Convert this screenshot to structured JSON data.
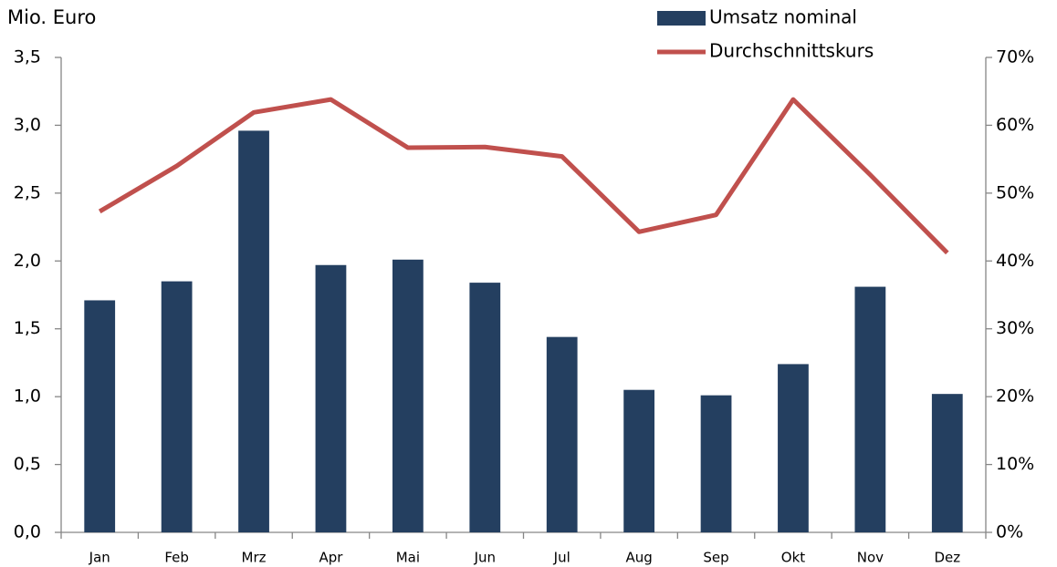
{
  "chart_data": {
    "type": "bar_line",
    "y_label": "Mio. Euro",
    "categories": [
      "Jan",
      "Feb",
      "Mrz",
      "Apr",
      "Mai",
      "Jun",
      "Jul",
      "Aug",
      "Sep",
      "Okt",
      "Nov",
      "Dez"
    ],
    "series": [
      {
        "name": "Umsatz nominal",
        "type": "bar",
        "color": "#243f60",
        "values": [
          1.71,
          1.85,
          2.96,
          1.97,
          2.01,
          1.84,
          1.44,
          1.05,
          1.01,
          1.24,
          1.81,
          1.02
        ]
      },
      {
        "name": "Durchschnittskurs",
        "type": "line",
        "axis": "y2",
        "color": "#c0504d",
        "values": [
          47.3,
          54.0,
          61.9,
          63.8,
          56.7,
          56.8,
          55.4,
          44.3,
          46.8,
          63.8,
          52.7,
          41.2
        ]
      }
    ],
    "ylim": [
      0,
      3.5
    ],
    "yticks": [
      {
        "value": 0,
        "label": "0,0"
      },
      {
        "value": 0.5,
        "label": "0,5"
      },
      {
        "value": 1,
        "label": "1,0"
      },
      {
        "value": 1.5,
        "label": "1,5"
      },
      {
        "value": 2,
        "label": "2,0"
      },
      {
        "value": 2.5,
        "label": "2,5"
      },
      {
        "value": 3,
        "label": "3,0"
      },
      {
        "value": 3.5,
        "label": "3,5"
      }
    ],
    "y2lim": [
      0,
      70
    ],
    "y2ticks": [
      {
        "value": 0,
        "label": "0%"
      },
      {
        "value": 10,
        "label": "10%"
      },
      {
        "value": 20,
        "label": "20%"
      },
      {
        "value": 30,
        "label": "30%"
      },
      {
        "value": 40,
        "label": "40%"
      },
      {
        "value": 50,
        "label": "50%"
      },
      {
        "value": 60,
        "label": "60%"
      },
      {
        "value": 70,
        "label": "70%"
      }
    ],
    "grid": false
  }
}
